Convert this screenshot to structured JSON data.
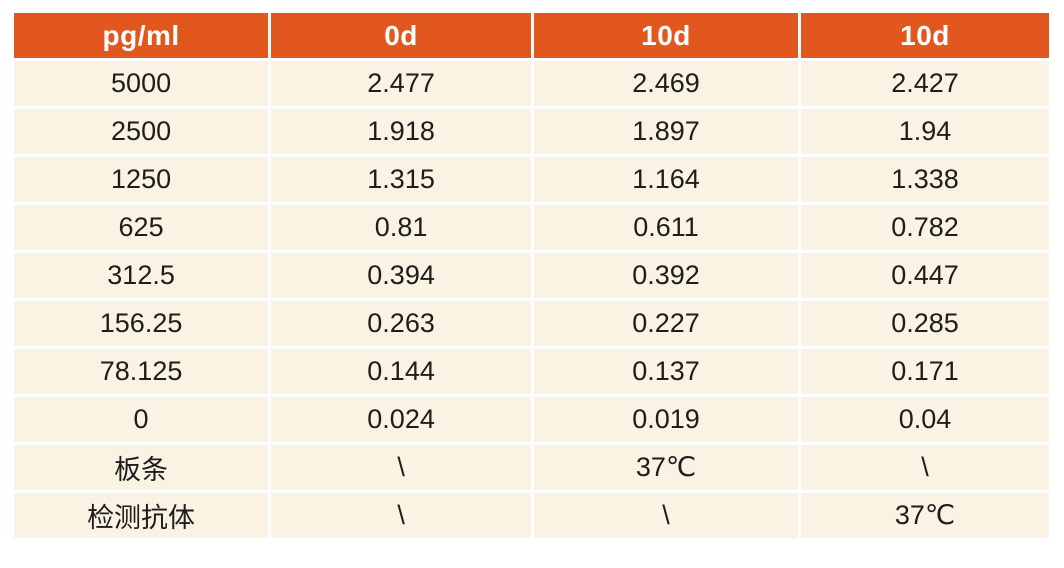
{
  "colors": {
    "header_bg": "#e2571e",
    "header_text": "#ffffff",
    "row_bg": "#faf2e2",
    "body_text": "#1d1d1b",
    "separator": "#ffffff",
    "page_bg": "#ffffff"
  },
  "chart_data": {
    "type": "table",
    "title": "",
    "columns": [
      "pg/ml",
      "0d",
      "10d",
      "10d"
    ],
    "rows": [
      [
        "5000",
        "2.477",
        "2.469",
        "2.427"
      ],
      [
        "2500",
        "1.918",
        "1.897",
        "1.94"
      ],
      [
        "1250",
        "1.315",
        "1.164",
        "1.338"
      ],
      [
        "625",
        "0.81",
        "0.611",
        "0.782"
      ],
      [
        "312.5",
        "0.394",
        "0.392",
        "0.447"
      ],
      [
        "156.25",
        "0.263",
        "0.227",
        "0.285"
      ],
      [
        "78.125",
        "0.144",
        "0.137",
        "0.171"
      ],
      [
        "0",
        "0.024",
        "0.019",
        "0.04"
      ],
      [
        "板条",
        "\\",
        "37℃",
        "\\"
      ],
      [
        "检测抗体",
        "\\",
        "\\",
        "37℃"
      ]
    ]
  }
}
